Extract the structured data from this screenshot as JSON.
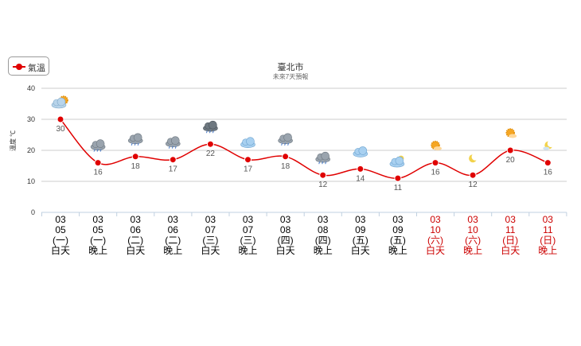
{
  "legend": {
    "label": "氣溫",
    "color": "#e00000"
  },
  "title": "臺北市",
  "subtitle": "未來7天預報",
  "chart_data": {
    "type": "line",
    "title": "臺北市",
    "subtitle": "未來7天預報",
    "ylabel": "溫度 ℃",
    "ylim": [
      0,
      40
    ],
    "yticks": [
      0,
      10,
      20,
      30,
      40
    ],
    "grid": true,
    "legend_position": "top-left",
    "series": [
      {
        "name": "氣溫",
        "color": "#e00000",
        "values": [
          30,
          16,
          18,
          17,
          22,
          17,
          18,
          12,
          14,
          11,
          16,
          12,
          20,
          16
        ]
      }
    ],
    "categories": [
      {
        "month": "03",
        "day": "05",
        "weekday": "(一)",
        "period": "白天",
        "weekend": false,
        "icon": "partly-cloudy-icon"
      },
      {
        "month": "03",
        "day": "05",
        "weekday": "(一)",
        "period": "晚上",
        "weekend": false,
        "icon": "cloudy-rain-icon"
      },
      {
        "month": "03",
        "day": "06",
        "weekday": "(二)",
        "period": "白天",
        "weekend": false,
        "icon": "cloudy-rain-icon"
      },
      {
        "month": "03",
        "day": "06",
        "weekday": "(二)",
        "period": "晚上",
        "weekend": false,
        "icon": "cloudy-rain-icon"
      },
      {
        "month": "03",
        "day": "07",
        "weekday": "(三)",
        "period": "白天",
        "weekend": false,
        "icon": "dark-cloud-rain-icon"
      },
      {
        "month": "03",
        "day": "07",
        "weekday": "(三)",
        "period": "晚上",
        "weekend": false,
        "icon": "cloudy-icon"
      },
      {
        "month": "03",
        "day": "08",
        "weekday": "(四)",
        "period": "白天",
        "weekend": false,
        "icon": "cloudy-rain-icon"
      },
      {
        "month": "03",
        "day": "08",
        "weekday": "(四)",
        "period": "晚上",
        "weekend": false,
        "icon": "cloudy-rain-icon"
      },
      {
        "month": "03",
        "day": "09",
        "weekday": "(五)",
        "period": "白天",
        "weekend": false,
        "icon": "cloudy-icon"
      },
      {
        "month": "03",
        "day": "09",
        "weekday": "(五)",
        "period": "晚上",
        "weekend": false,
        "icon": "cloudy-moon-icon"
      },
      {
        "month": "03",
        "day": "10",
        "weekday": "(六)",
        "period": "白天",
        "weekend": true,
        "icon": "sun-cloud-icon"
      },
      {
        "month": "03",
        "day": "10",
        "weekday": "(六)",
        "period": "晚上",
        "weekend": true,
        "icon": "moon-icon"
      },
      {
        "month": "03",
        "day": "11",
        "weekday": "(日)",
        "period": "白天",
        "weekend": true,
        "icon": "sun-cloud-icon"
      },
      {
        "month": "03",
        "day": "11",
        "weekday": "(日)",
        "period": "晚上",
        "weekend": true,
        "icon": "moon-cloud-icon"
      }
    ],
    "colors": {
      "weekday_text": "#000000",
      "weekend_text": "#cc0000",
      "grid": "#cccccc",
      "axis": "#c0d0e0"
    }
  }
}
